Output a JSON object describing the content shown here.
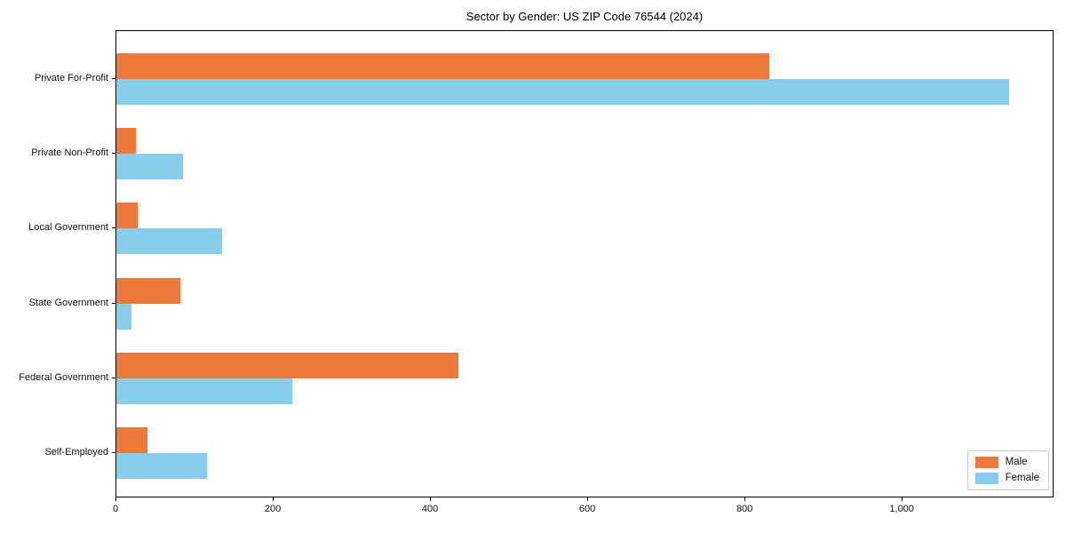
{
  "chart_data": {
    "type": "bar",
    "orientation": "horizontal",
    "title": "Sector by Gender: US ZIP Code 76544 (2024)",
    "categories": [
      "Private For-Profit",
      "Private Non-Profit",
      "Local Government",
      "State Government",
      "Federal Government",
      "Self-Employed"
    ],
    "series": [
      {
        "name": "Male",
        "color": "#ed7a3a",
        "values": [
          830,
          25,
          27,
          81,
          435,
          40
        ]
      },
      {
        "name": "Female",
        "color": "#87ceeb",
        "values": [
          1135,
          85,
          134,
          19,
          224,
          115
        ]
      }
    ],
    "xlabel": "",
    "ylabel": "",
    "xlim": [
      0,
      1193
    ],
    "x_ticks": [
      {
        "value": 0,
        "label": "0"
      },
      {
        "value": 200,
        "label": "200"
      },
      {
        "value": 400,
        "label": "400"
      },
      {
        "value": 600,
        "label": "600"
      },
      {
        "value": 800,
        "label": "800"
      },
      {
        "value": 1000,
        "label": "1,000"
      }
    ],
    "grid": false,
    "legend_position": "lower right",
    "background_color": "#ffffff",
    "frame_color": "#000000"
  }
}
